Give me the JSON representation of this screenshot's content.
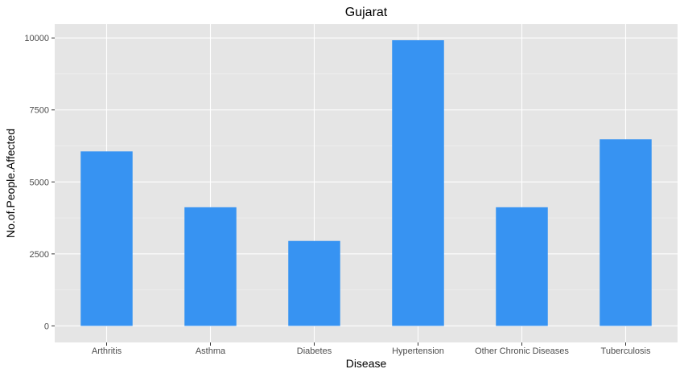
{
  "chart_data": {
    "type": "bar",
    "title": "Gujarat",
    "xlabel": "Disease",
    "ylabel": "No.of.People.Affected",
    "categories": [
      "Arthritis",
      "Asthma",
      "Diabetes",
      "Hypertension",
      "Other Chronic Diseases",
      "Tuberculosis"
    ],
    "values": [
      6060,
      4120,
      2950,
      9920,
      4120,
      6480
    ],
    "ylim": [
      -575,
      10480
    ],
    "yticks": [
      0,
      2500,
      5000,
      7500,
      10000
    ],
    "ytick_labels": [
      "0",
      "2500",
      "5000",
      "7500",
      "10000"
    ],
    "bar_color": "#3793f2",
    "panel_color": "#e5e5e5",
    "grid": true,
    "legend": "none"
  }
}
